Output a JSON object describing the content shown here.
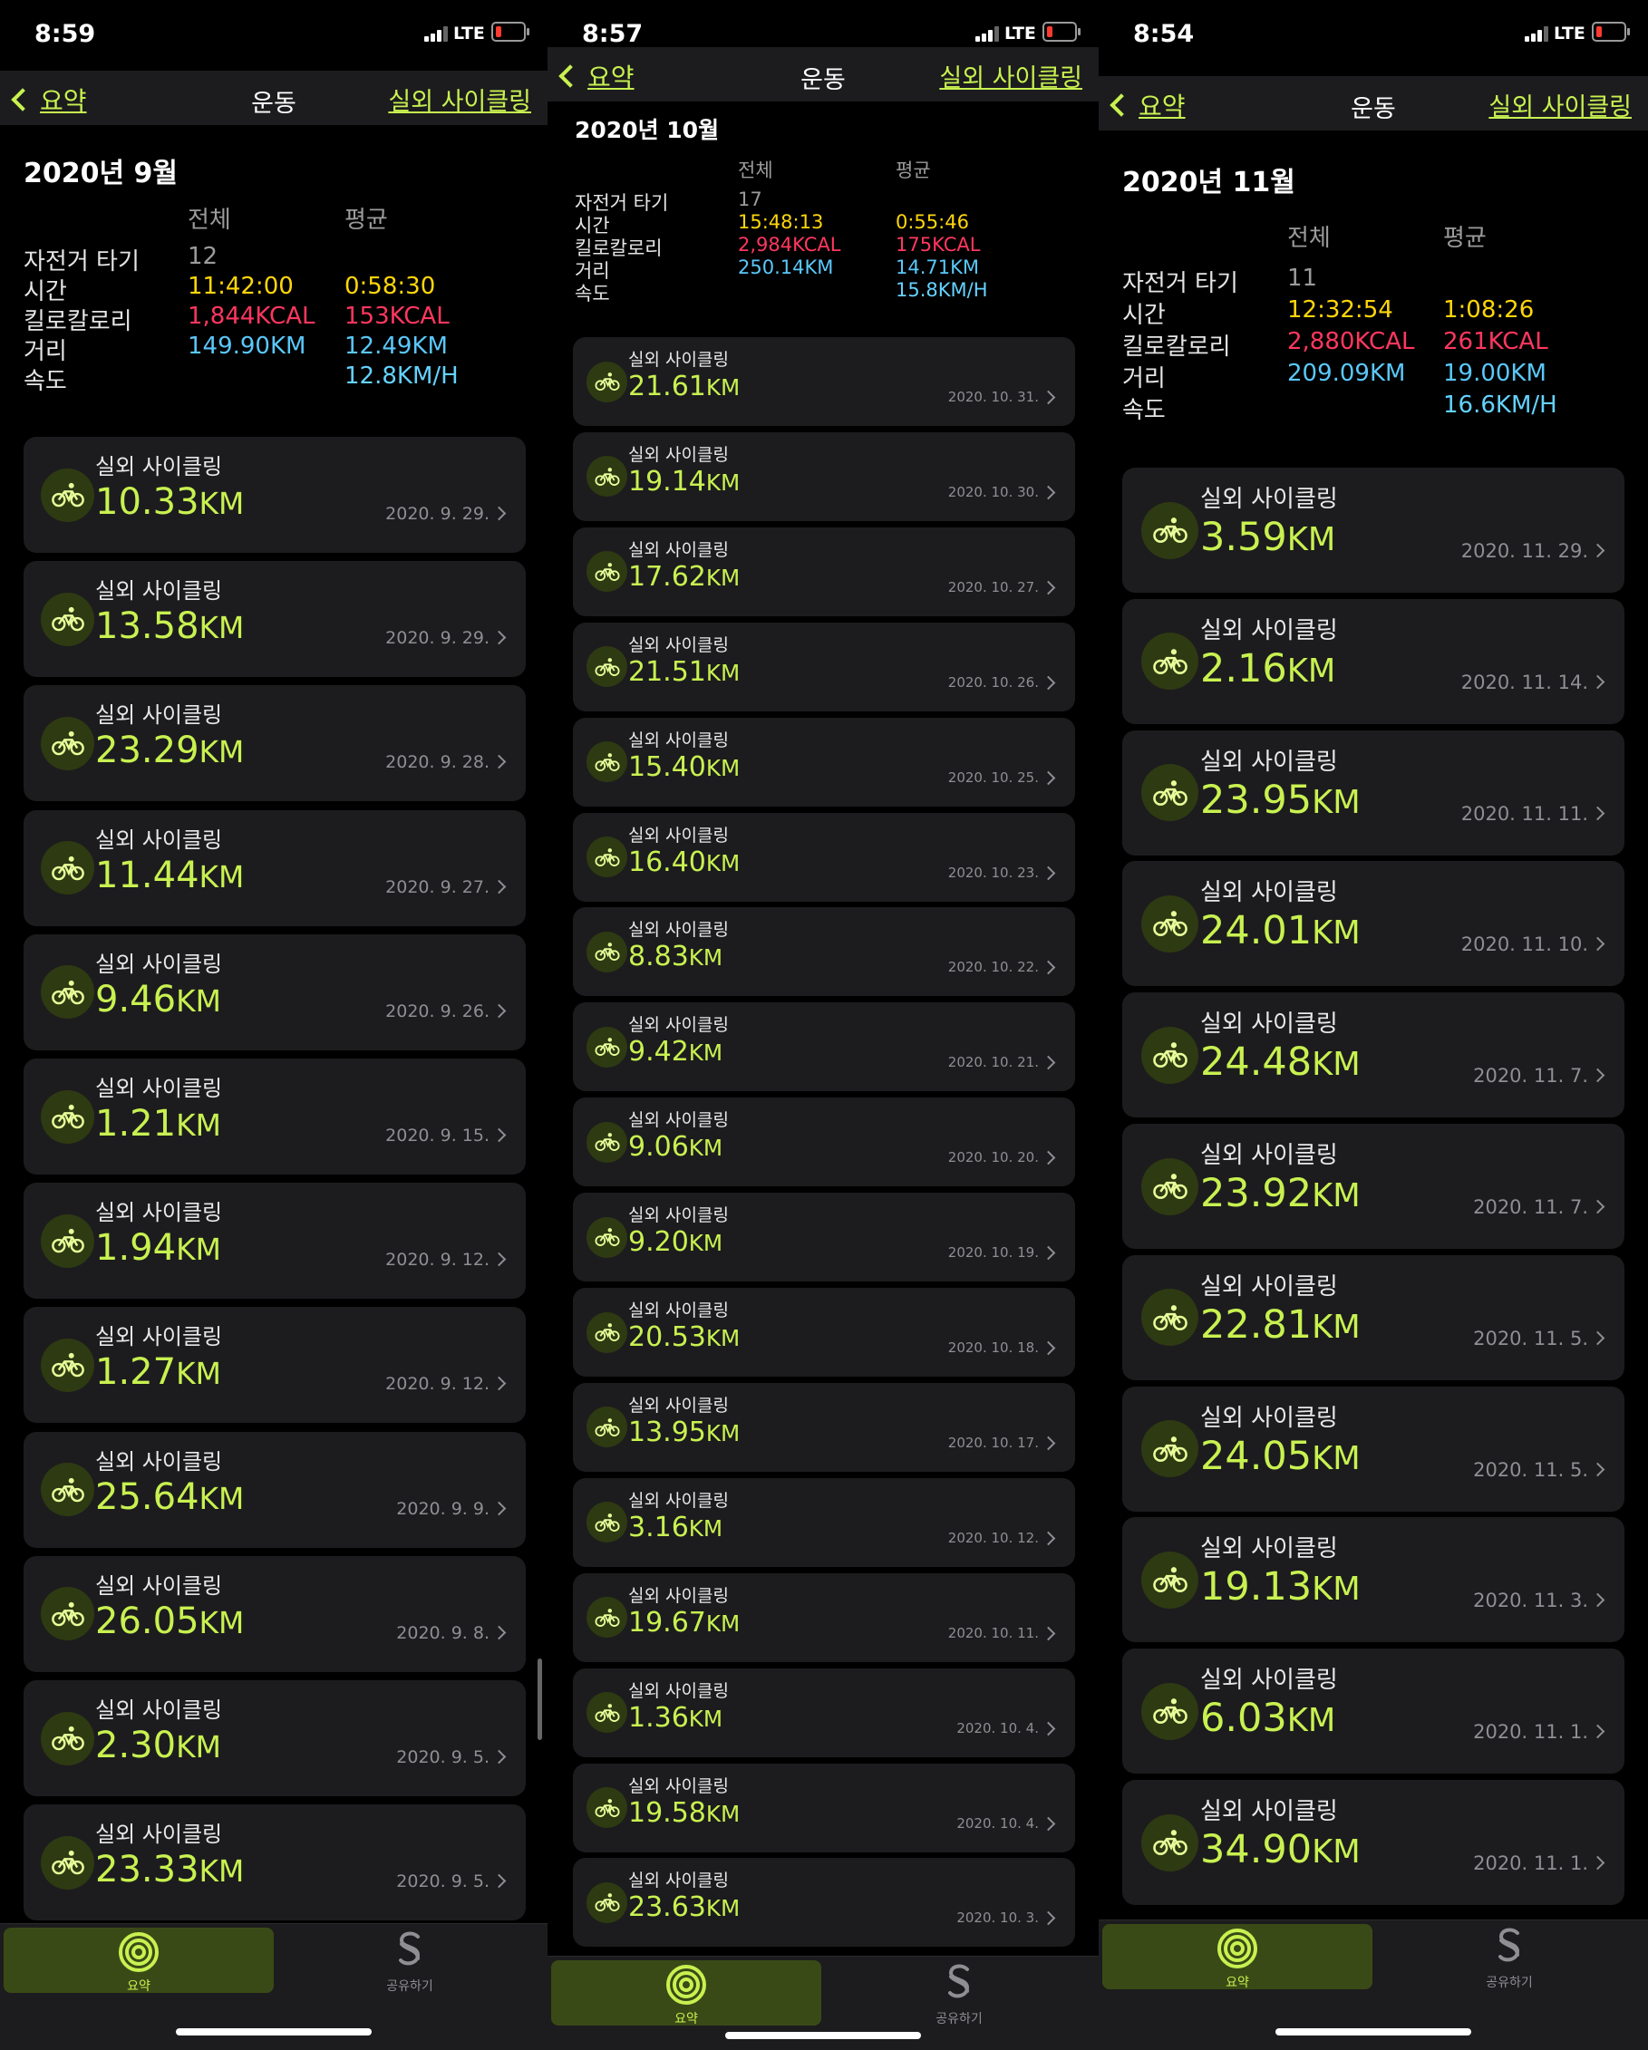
{
  "colors": {
    "accent": "#c8f150",
    "time": "#ffd60a",
    "calorie": "#ff375f",
    "distance": "#5ac8fa",
    "speed": "#64d2ff"
  },
  "icons": {
    "workout": "bicycle-icon",
    "summary_tab": "activity-rings-icon",
    "share_tab": "sharing-icon",
    "back": "chevron-left-icon",
    "row": "chevron-right-icon"
  },
  "panels": [
    {
      "status": {
        "time": "8:59",
        "network": "LTE"
      },
      "nav": {
        "back": "요약",
        "title": "운동",
        "link": "실외 사이클링"
      },
      "month": "2020년 9월",
      "summary": {
        "col_total": "전체",
        "col_avg": "평균",
        "rows": [
          {
            "label": "자전거 타기",
            "total": "12",
            "avg": ""
          },
          {
            "label": "시간",
            "total": "11:42:00",
            "avg": "0:58:30"
          },
          {
            "label": "킬로칼로리",
            "total": "1,844KCAL",
            "avg": "153KCAL"
          },
          {
            "label": "거리",
            "total": "149.90KM",
            "avg": "12.49KM"
          },
          {
            "label": "속도",
            "total": "",
            "avg": "12.8KM/H"
          }
        ]
      },
      "workouts": [
        {
          "title": "실외 사이클링",
          "value": "10.33",
          "unit": "KM",
          "date": "2020. 9. 29."
        },
        {
          "title": "실외 사이클링",
          "value": "13.58",
          "unit": "KM",
          "date": "2020. 9. 29."
        },
        {
          "title": "실외 사이클링",
          "value": "23.29",
          "unit": "KM",
          "date": "2020. 9. 28."
        },
        {
          "title": "실외 사이클링",
          "value": "11.44",
          "unit": "KM",
          "date": "2020. 9. 27."
        },
        {
          "title": "실외 사이클링",
          "value": "9.46",
          "unit": "KM",
          "date": "2020. 9. 26."
        },
        {
          "title": "실외 사이클링",
          "value": "1.21",
          "unit": "KM",
          "date": "2020. 9. 15."
        },
        {
          "title": "실외 사이클링",
          "value": "1.94",
          "unit": "KM",
          "date": "2020. 9. 12."
        },
        {
          "title": "실외 사이클링",
          "value": "1.27",
          "unit": "KM",
          "date": "2020. 9. 12."
        },
        {
          "title": "실외 사이클링",
          "value": "25.64",
          "unit": "KM",
          "date": "2020. 9. 9."
        },
        {
          "title": "실외 사이클링",
          "value": "26.05",
          "unit": "KM",
          "date": "2020. 9. 8."
        },
        {
          "title": "실외 사이클링",
          "value": "2.30",
          "unit": "KM",
          "date": "2020. 9. 5."
        },
        {
          "title": "실외 사이클링",
          "value": "23.33",
          "unit": "KM",
          "date": "2020. 9. 5."
        }
      ],
      "tabs": {
        "summary": "요약",
        "share": "공유하기"
      }
    },
    {
      "status": {
        "time": "8:57",
        "network": "LTE"
      },
      "nav": {
        "back": "요약",
        "title": "운동",
        "link": "실외 사이클링"
      },
      "month": "2020년 10월",
      "summary": {
        "col_total": "전체",
        "col_avg": "평균",
        "rows": [
          {
            "label": "자전거 타기",
            "total": "17",
            "avg": ""
          },
          {
            "label": "시간",
            "total": "15:48:13",
            "avg": "0:55:46"
          },
          {
            "label": "킬로칼로리",
            "total": "2,984KCAL",
            "avg": "175KCAL"
          },
          {
            "label": "거리",
            "total": "250.14KM",
            "avg": "14.71KM"
          },
          {
            "label": "속도",
            "total": "",
            "avg": "15.8KM/H"
          }
        ]
      },
      "workouts": [
        {
          "title": "실외 사이클링",
          "value": "21.61",
          "unit": "KM",
          "date": "2020. 10. 31."
        },
        {
          "title": "실외 사이클링",
          "value": "19.14",
          "unit": "KM",
          "date": "2020. 10. 30."
        },
        {
          "title": "실외 사이클링",
          "value": "17.62",
          "unit": "KM",
          "date": "2020. 10. 27."
        },
        {
          "title": "실외 사이클링",
          "value": "21.51",
          "unit": "KM",
          "date": "2020. 10. 26."
        },
        {
          "title": "실외 사이클링",
          "value": "15.40",
          "unit": "KM",
          "date": "2020. 10. 25."
        },
        {
          "title": "실외 사이클링",
          "value": "16.40",
          "unit": "KM",
          "date": "2020. 10. 23."
        },
        {
          "title": "실외 사이클링",
          "value": "8.83",
          "unit": "KM",
          "date": "2020. 10. 22."
        },
        {
          "title": "실외 사이클링",
          "value": "9.42",
          "unit": "KM",
          "date": "2020. 10. 21."
        },
        {
          "title": "실외 사이클링",
          "value": "9.06",
          "unit": "KM",
          "date": "2020. 10. 20."
        },
        {
          "title": "실외 사이클링",
          "value": "9.20",
          "unit": "KM",
          "date": "2020. 10. 19."
        },
        {
          "title": "실외 사이클링",
          "value": "20.53",
          "unit": "KM",
          "date": "2020. 10. 18."
        },
        {
          "title": "실외 사이클링",
          "value": "13.95",
          "unit": "KM",
          "date": "2020. 10. 17."
        },
        {
          "title": "실외 사이클링",
          "value": "3.16",
          "unit": "KM",
          "date": "2020. 10. 12."
        },
        {
          "title": "실외 사이클링",
          "value": "19.67",
          "unit": "KM",
          "date": "2020. 10. 11."
        },
        {
          "title": "실외 사이클링",
          "value": "1.36",
          "unit": "KM",
          "date": "2020. 10. 4."
        },
        {
          "title": "실외 사이클링",
          "value": "19.58",
          "unit": "KM",
          "date": "2020. 10. 4."
        },
        {
          "title": "실외 사이클링",
          "value": "23.63",
          "unit": "KM",
          "date": "2020. 10. 3."
        }
      ],
      "tabs": {
        "summary": "요약",
        "share": "공유하기"
      }
    },
    {
      "status": {
        "time": "8:54",
        "network": "LTE"
      },
      "nav": {
        "back": "요약",
        "title": "운동",
        "link": "실외 사이클링"
      },
      "month": "2020년 11월",
      "summary": {
        "col_total": "전체",
        "col_avg": "평균",
        "rows": [
          {
            "label": "자전거 타기",
            "total": "11",
            "avg": ""
          },
          {
            "label": "시간",
            "total": "12:32:54",
            "avg": "1:08:26"
          },
          {
            "label": "킬로칼로리",
            "total": "2,880KCAL",
            "avg": "261KCAL"
          },
          {
            "label": "거리",
            "total": "209.09KM",
            "avg": "19.00KM"
          },
          {
            "label": "속도",
            "total": "",
            "avg": "16.6KM/H"
          }
        ]
      },
      "workouts": [
        {
          "title": "실외 사이클링",
          "value": "3.59",
          "unit": "KM",
          "date": "2020. 11. 29."
        },
        {
          "title": "실외 사이클링",
          "value": "2.16",
          "unit": "KM",
          "date": "2020. 11. 14."
        },
        {
          "title": "실외 사이클링",
          "value": "23.95",
          "unit": "KM",
          "date": "2020. 11. 11."
        },
        {
          "title": "실외 사이클링",
          "value": "24.01",
          "unit": "KM",
          "date": "2020. 11. 10."
        },
        {
          "title": "실외 사이클링",
          "value": "24.48",
          "unit": "KM",
          "date": "2020. 11. 7."
        },
        {
          "title": "실외 사이클링",
          "value": "23.92",
          "unit": "KM",
          "date": "2020. 11. 7."
        },
        {
          "title": "실외 사이클링",
          "value": "22.81",
          "unit": "KM",
          "date": "2020. 11. 5."
        },
        {
          "title": "실외 사이클링",
          "value": "24.05",
          "unit": "KM",
          "date": "2020. 11. 5."
        },
        {
          "title": "실외 사이클링",
          "value": "19.13",
          "unit": "KM",
          "date": "2020. 11. 3."
        },
        {
          "title": "실외 사이클링",
          "value": "6.03",
          "unit": "KM",
          "date": "2020. 11. 1."
        },
        {
          "title": "실외 사이클링",
          "value": "34.90",
          "unit": "KM",
          "date": "2020. 11. 1."
        }
      ],
      "tabs": {
        "summary": "요약",
        "share": "공유하기"
      }
    }
  ]
}
